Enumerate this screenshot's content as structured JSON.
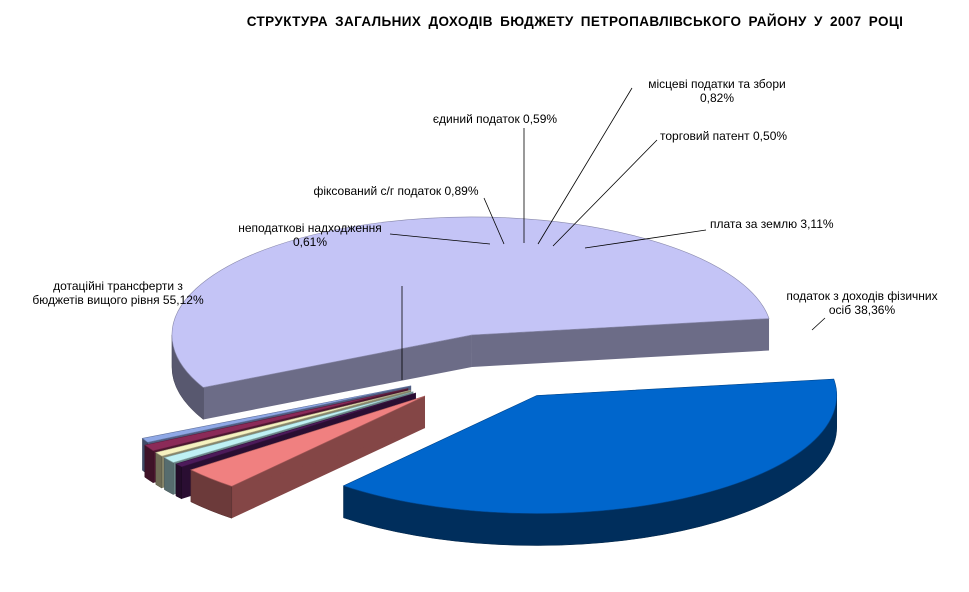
{
  "chart_data": {
    "type": "pie",
    "title": "СТРУКТУРА  ЗАГАЛЬНИХ ДОХОДІВ  БЮДЖЕТУ ПЕТРОПАВЛІВСЬКОГО  РАЙОНУ  У  2007  РОЦІ",
    "exploded": true,
    "three_d": true,
    "legend": "none",
    "slices": [
      {
        "label": [
          "податок  з  доходів фізичних",
          "осіб 38,36%"
        ],
        "value": 38.36,
        "color": "#0066CC"
      },
      {
        "label": [
          "плата  за  землю 3,11%"
        ],
        "value": 3.11,
        "color": "#F08080"
      },
      {
        "label": [
          "торговий  патент 0,50%"
        ],
        "value": 0.5,
        "color": "#4D1A5A"
      },
      {
        "label": [
          "місцеві  податки  та  збори",
          "0,82%"
        ],
        "value": 0.82,
        "color": "#BFF1F4"
      },
      {
        "label": [
          "єдиний  податок 0,59%"
        ],
        "value": 0.59,
        "color": "#F6F2C0"
      },
      {
        "label": [
          "фіксований  с/г  податок 0,89%"
        ],
        "value": 0.89,
        "color": "#8B2A58"
      },
      {
        "label": [
          "неподаткові надходження",
          "0,61%"
        ],
        "value": 0.61,
        "color": "#8FA8E6"
      },
      {
        "label": [
          "дотаційні трансферти з",
          "бюджетів вищого рівня 55,12%"
        ],
        "value": 55.12,
        "color": "#C4C4F6"
      }
    ]
  }
}
